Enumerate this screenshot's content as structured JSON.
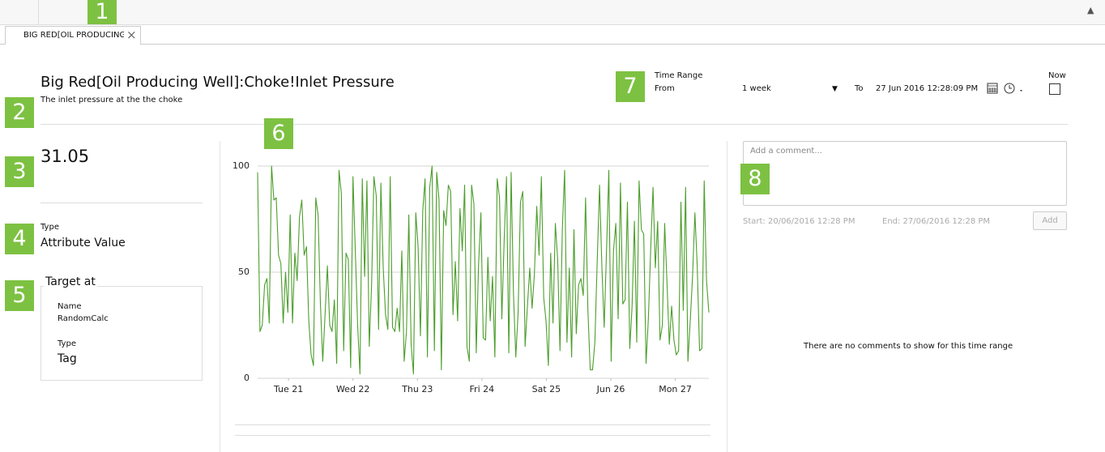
{
  "toolbar": {
    "tab": "BIG RED[OIL PRODUCING"
  },
  "callouts": [
    "1",
    "2",
    "3",
    "4",
    "5",
    "6",
    "7",
    "8"
  ],
  "header": {
    "title": "Big Red[Oil Producing Well]:Choke!Inlet Pressure",
    "description": "The inlet pressure at the the choke"
  },
  "time_range": {
    "label": "Time Range",
    "from_label": "From",
    "from_value": "1 week",
    "to_label": "To",
    "to_value": "27 Jun 2016 12:28:09 PM",
    "now_label": "Now"
  },
  "summary": {
    "value": "31.05",
    "type_label": "Type",
    "type_value": "Attribute Value",
    "target_title": "Target at",
    "name_label": "Name",
    "name_value": "RandomCalc",
    "target_type_label": "Type",
    "target_type_value": "Tag"
  },
  "comments": {
    "placeholder": "Add a comment...",
    "start": "Start: 20/06/2016 12:28 PM",
    "end": "End: 27/06/2016 12:28 PM",
    "add_button": "Add",
    "empty_message": "There are no comments to show for this time range"
  },
  "chart_data": {
    "type": "line",
    "color": "#4c9e2c",
    "grid": true,
    "xlim": [
      0,
      168
    ],
    "xticks": [
      {
        "value": 11.5,
        "label": "Tue 21"
      },
      {
        "value": 35.5,
        "label": "Wed 22"
      },
      {
        "value": 59.5,
        "label": "Thu 23"
      },
      {
        "value": 83.5,
        "label": "Fri 24"
      },
      {
        "value": 107.5,
        "label": "Sat 25"
      },
      {
        "value": 131.5,
        "label": "Jun 26"
      },
      {
        "value": 155.5,
        "label": "Mon 27"
      }
    ],
    "ylim": [
      0,
      100
    ],
    "yticks": [
      0,
      50,
      100
    ],
    "values": [
      97,
      22,
      25,
      44,
      47,
      26,
      100,
      84,
      85,
      58,
      54,
      26,
      50,
      31,
      77,
      26,
      59,
      46,
      76,
      84,
      58,
      62,
      27,
      11,
      6,
      85,
      77,
      35,
      8,
      30,
      53,
      25,
      22,
      37,
      7,
      98,
      87,
      13,
      59,
      56,
      5,
      95,
      60,
      25,
      2,
      94,
      48,
      93,
      15,
      44,
      95,
      86,
      23,
      92,
      52,
      30,
      23,
      95,
      24,
      22,
      33,
      22,
      60,
      8,
      22,
      77,
      16,
      2,
      78,
      62,
      20,
      79,
      94,
      10,
      90,
      100,
      13,
      97,
      84,
      4,
      79,
      72,
      91,
      88,
      30,
      55,
      27,
      80,
      60,
      91,
      15,
      8,
      91,
      82,
      12,
      54,
      78,
      19,
      18,
      57,
      27,
      48,
      10,
      94,
      85,
      28,
      65,
      95,
      12,
      97,
      40,
      10,
      31,
      83,
      88,
      15,
      34,
      52,
      33,
      49,
      81,
      58,
      95,
      38,
      27,
      6,
      59,
      26,
      73,
      56,
      13,
      70,
      98,
      17,
      52,
      10,
      70,
      21,
      44,
      47,
      39,
      85,
      32,
      4,
      4,
      17,
      55,
      91,
      53,
      24,
      60,
      98,
      8,
      60,
      73,
      28,
      92,
      35,
      37,
      83,
      14,
      34,
      74,
      17,
      93,
      70,
      68,
      7,
      28,
      61,
      90,
      52,
      74,
      18,
      25,
      73,
      45,
      16,
      34,
      18,
      11,
      13,
      83,
      32,
      90,
      8,
      27,
      48,
      78,
      53,
      13,
      14,
      93,
      46,
      31
    ]
  }
}
